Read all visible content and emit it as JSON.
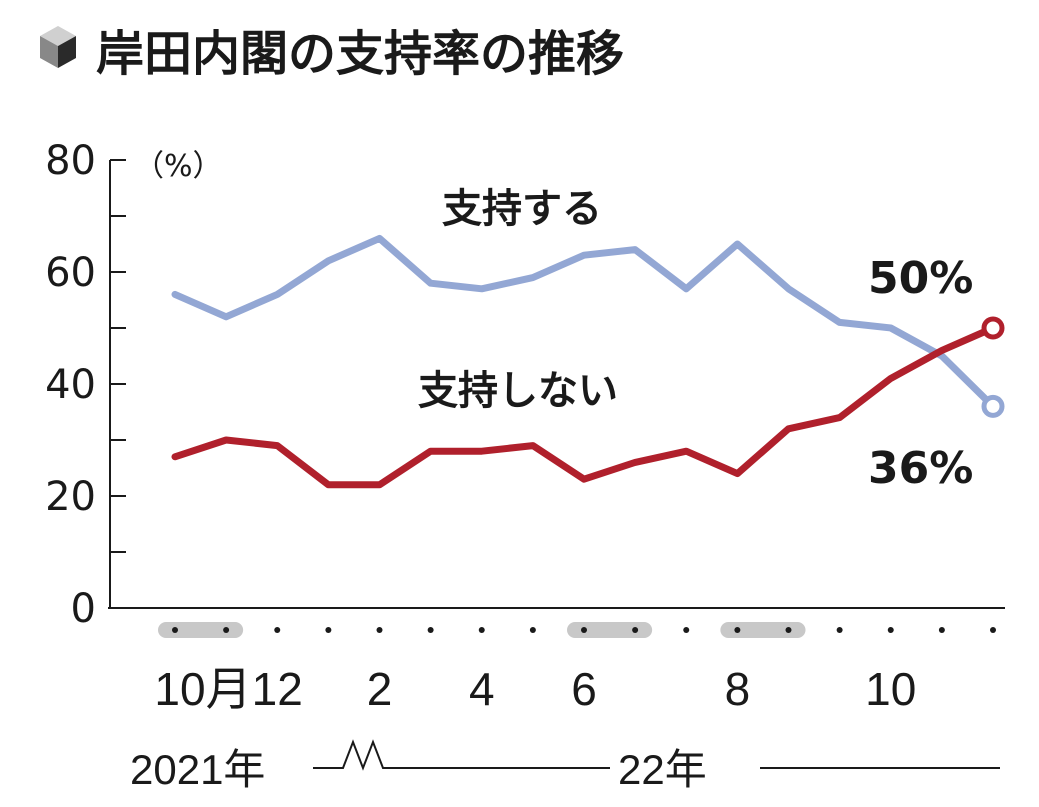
{
  "header": {
    "title": "岸田内閣の支持率の推移",
    "icon": "cube-icon"
  },
  "chart_data": {
    "type": "line",
    "title": "岸田内閣の支持率の推移",
    "unit_label": "（%）",
    "ylim": [
      0,
      80
    ],
    "yticks": [
      0,
      20,
      40,
      60,
      80
    ],
    "x_month_labels": [
      {
        "index": 0,
        "text": "10月"
      },
      {
        "index": 2,
        "text": "12"
      },
      {
        "index": 4,
        "text": "2"
      },
      {
        "index": 6,
        "text": "4"
      },
      {
        "index": 8,
        "text": "6"
      },
      {
        "index": 11,
        "text": "8"
      },
      {
        "index": 14,
        "text": "10"
      }
    ],
    "x_year_labels": [
      "2021年",
      "22年"
    ],
    "highlighted_point_groups": [
      [
        0,
        1
      ],
      [
        8,
        9
      ],
      [
        11,
        12
      ]
    ],
    "point_count": 17,
    "series": [
      {
        "name": "支持する",
        "color": "#93a7d4",
        "values": [
          56,
          52,
          56,
          62,
          66,
          58,
          57,
          59,
          63,
          64,
          57,
          65,
          57,
          51,
          50,
          45,
          36
        ],
        "end_label": "36%"
      },
      {
        "name": "支持しない",
        "color": "#b0202c",
        "values": [
          27,
          30,
          29,
          22,
          22,
          28,
          28,
          29,
          23,
          26,
          28,
          24,
          32,
          34,
          41,
          46,
          50
        ],
        "end_label": "50%"
      }
    ],
    "grid": false,
    "legend": "inline"
  }
}
